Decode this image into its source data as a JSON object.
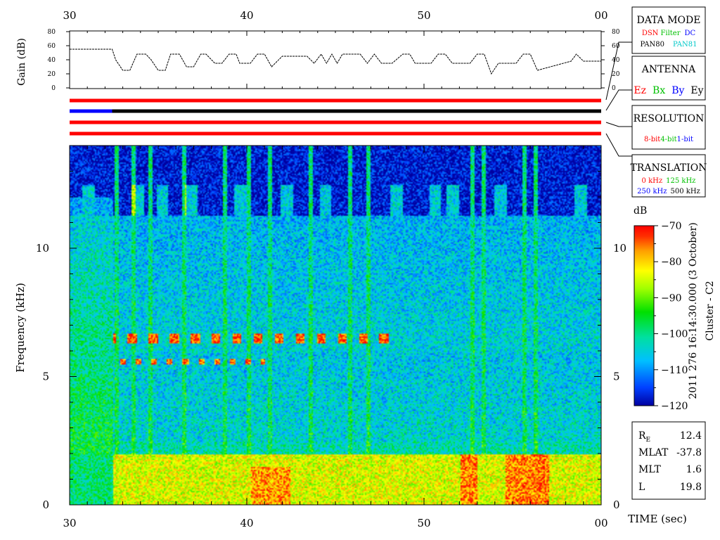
{
  "chart_data": [
    {
      "type": "line",
      "ylabel": "Gain (dB)",
      "xlim": [
        30,
        60
      ],
      "ylim": [
        0,
        80
      ],
      "x_ticklabels": [
        "30",
        "40",
        "50",
        "00"
      ],
      "y_ticklabels": [
        "0",
        "20",
        "40",
        "60",
        "80"
      ],
      "x": [
        30,
        32.4,
        32.6,
        33,
        33.4,
        33.8,
        34.3,
        34.6,
        35,
        35.4,
        35.7,
        36.2,
        36.6,
        37,
        37.4,
        37.7,
        38.2,
        38.6,
        39,
        39.4,
        39.6,
        40.2,
        40.6,
        41,
        41.4,
        42,
        43.4,
        43.8,
        44.2,
        44.5,
        44.8,
        45.1,
        45.4,
        46.4,
        46.8,
        47.2,
        47.6,
        48.2,
        48.8,
        49.2,
        49.5,
        50.4,
        50.8,
        51.2,
        51.6,
        52.6,
        53,
        53.4,
        53.8,
        54.2,
        55.2,
        55.6,
        56,
        56.4,
        58.3,
        58.6,
        59,
        60
      ],
      "y": [
        55,
        55,
        40,
        25,
        25,
        48,
        48,
        40,
        25,
        25,
        48,
        48,
        30,
        30,
        48,
        48,
        35,
        35,
        48,
        48,
        35,
        35,
        48,
        48,
        30,
        45,
        45,
        35,
        48,
        35,
        48,
        35,
        48,
        48,
        35,
        48,
        35,
        35,
        48,
        48,
        35,
        35,
        48,
        48,
        35,
        35,
        48,
        48,
        20,
        35,
        35,
        48,
        48,
        25,
        38,
        48,
        38,
        38
      ]
    },
    {
      "type": "heatmap",
      "xlabel": "TIME (sec)",
      "ylabel": "Frequency (kHz)",
      "xlim": [
        30,
        60
      ],
      "ylim": [
        0,
        14
      ],
      "x_ticklabels": [
        "30",
        "40",
        "50",
        "00"
      ],
      "y_ticklabels": [
        "0",
        "5",
        "10"
      ],
      "colorbar": {
        "label": "dB",
        "range": [
          -120,
          -70
        ],
        "ticks": [
          "-70",
          "-80",
          "-90",
          "-100",
          "-110",
          "-120"
        ],
        "colors": [
          "#0000a0",
          "#0040ff",
          "#00c0ff",
          "#00e0a0",
          "#00e000",
          "#a0ff00",
          "#ffff00",
          "#ffa000",
          "#ff3000",
          "#ff0000"
        ]
      }
    }
  ],
  "status_bars": [
    {
      "color": "#ff0000"
    },
    {
      "color": "#000000",
      "prefix_color": "#0000ff",
      "prefix_end": 32.4
    },
    {
      "color": "#ff0000"
    },
    {
      "color": "#ff0000"
    }
  ],
  "legend": {
    "data_mode": {
      "title": "DATA MODE",
      "row1": [
        {
          "text": "DSN",
          "color": "#ff0000"
        },
        {
          "text": "Filter",
          "color": "#00c000"
        },
        {
          "text": "DC",
          "color": "#0000ff"
        }
      ],
      "row2": [
        {
          "text": "PAN80",
          "color": "#000000"
        },
        {
          "text": "PAN81",
          "color": "#00c8c8"
        }
      ]
    },
    "antenna": {
      "title": "ANTENNA",
      "row1": [
        {
          "text": "Ez",
          "color": "#ff0000"
        },
        {
          "text": "Bx",
          "color": "#00c000"
        },
        {
          "text": "By",
          "color": "#0000ff"
        },
        {
          "text": "Ey",
          "color": "#000000"
        }
      ]
    },
    "resolution": {
      "title": "RESOLUTION",
      "row1": [
        {
          "text": "8-bit",
          "color": "#ff0000"
        },
        {
          "text": "4-bit",
          "color": "#00c000"
        },
        {
          "text": "1-bit",
          "color": "#0000ff"
        }
      ]
    },
    "translation": {
      "title": "TRANSLATION",
      "row1": [
        {
          "text": "0 kHz",
          "color": "#ff0000"
        },
        {
          "text": "125 kHz",
          "color": "#00c000"
        }
      ],
      "row2": [
        {
          "text": "250 kHz",
          "color": "#0000ff"
        },
        {
          "text": "500 kHz",
          "color": "#000000"
        }
      ]
    }
  },
  "side_label": {
    "line1": "2011 276 16:14:30.000 (3 October)",
    "line2": "Cluster - C2"
  },
  "params": {
    "re_label": "R",
    "re_sub": "E",
    "re_value": "12.4",
    "mlat_label": "MLAT",
    "mlat_value": "-37.8",
    "mlt_label": "MLT",
    "mlt_value": "1.6",
    "l_label": "L",
    "l_value": "19.8"
  }
}
